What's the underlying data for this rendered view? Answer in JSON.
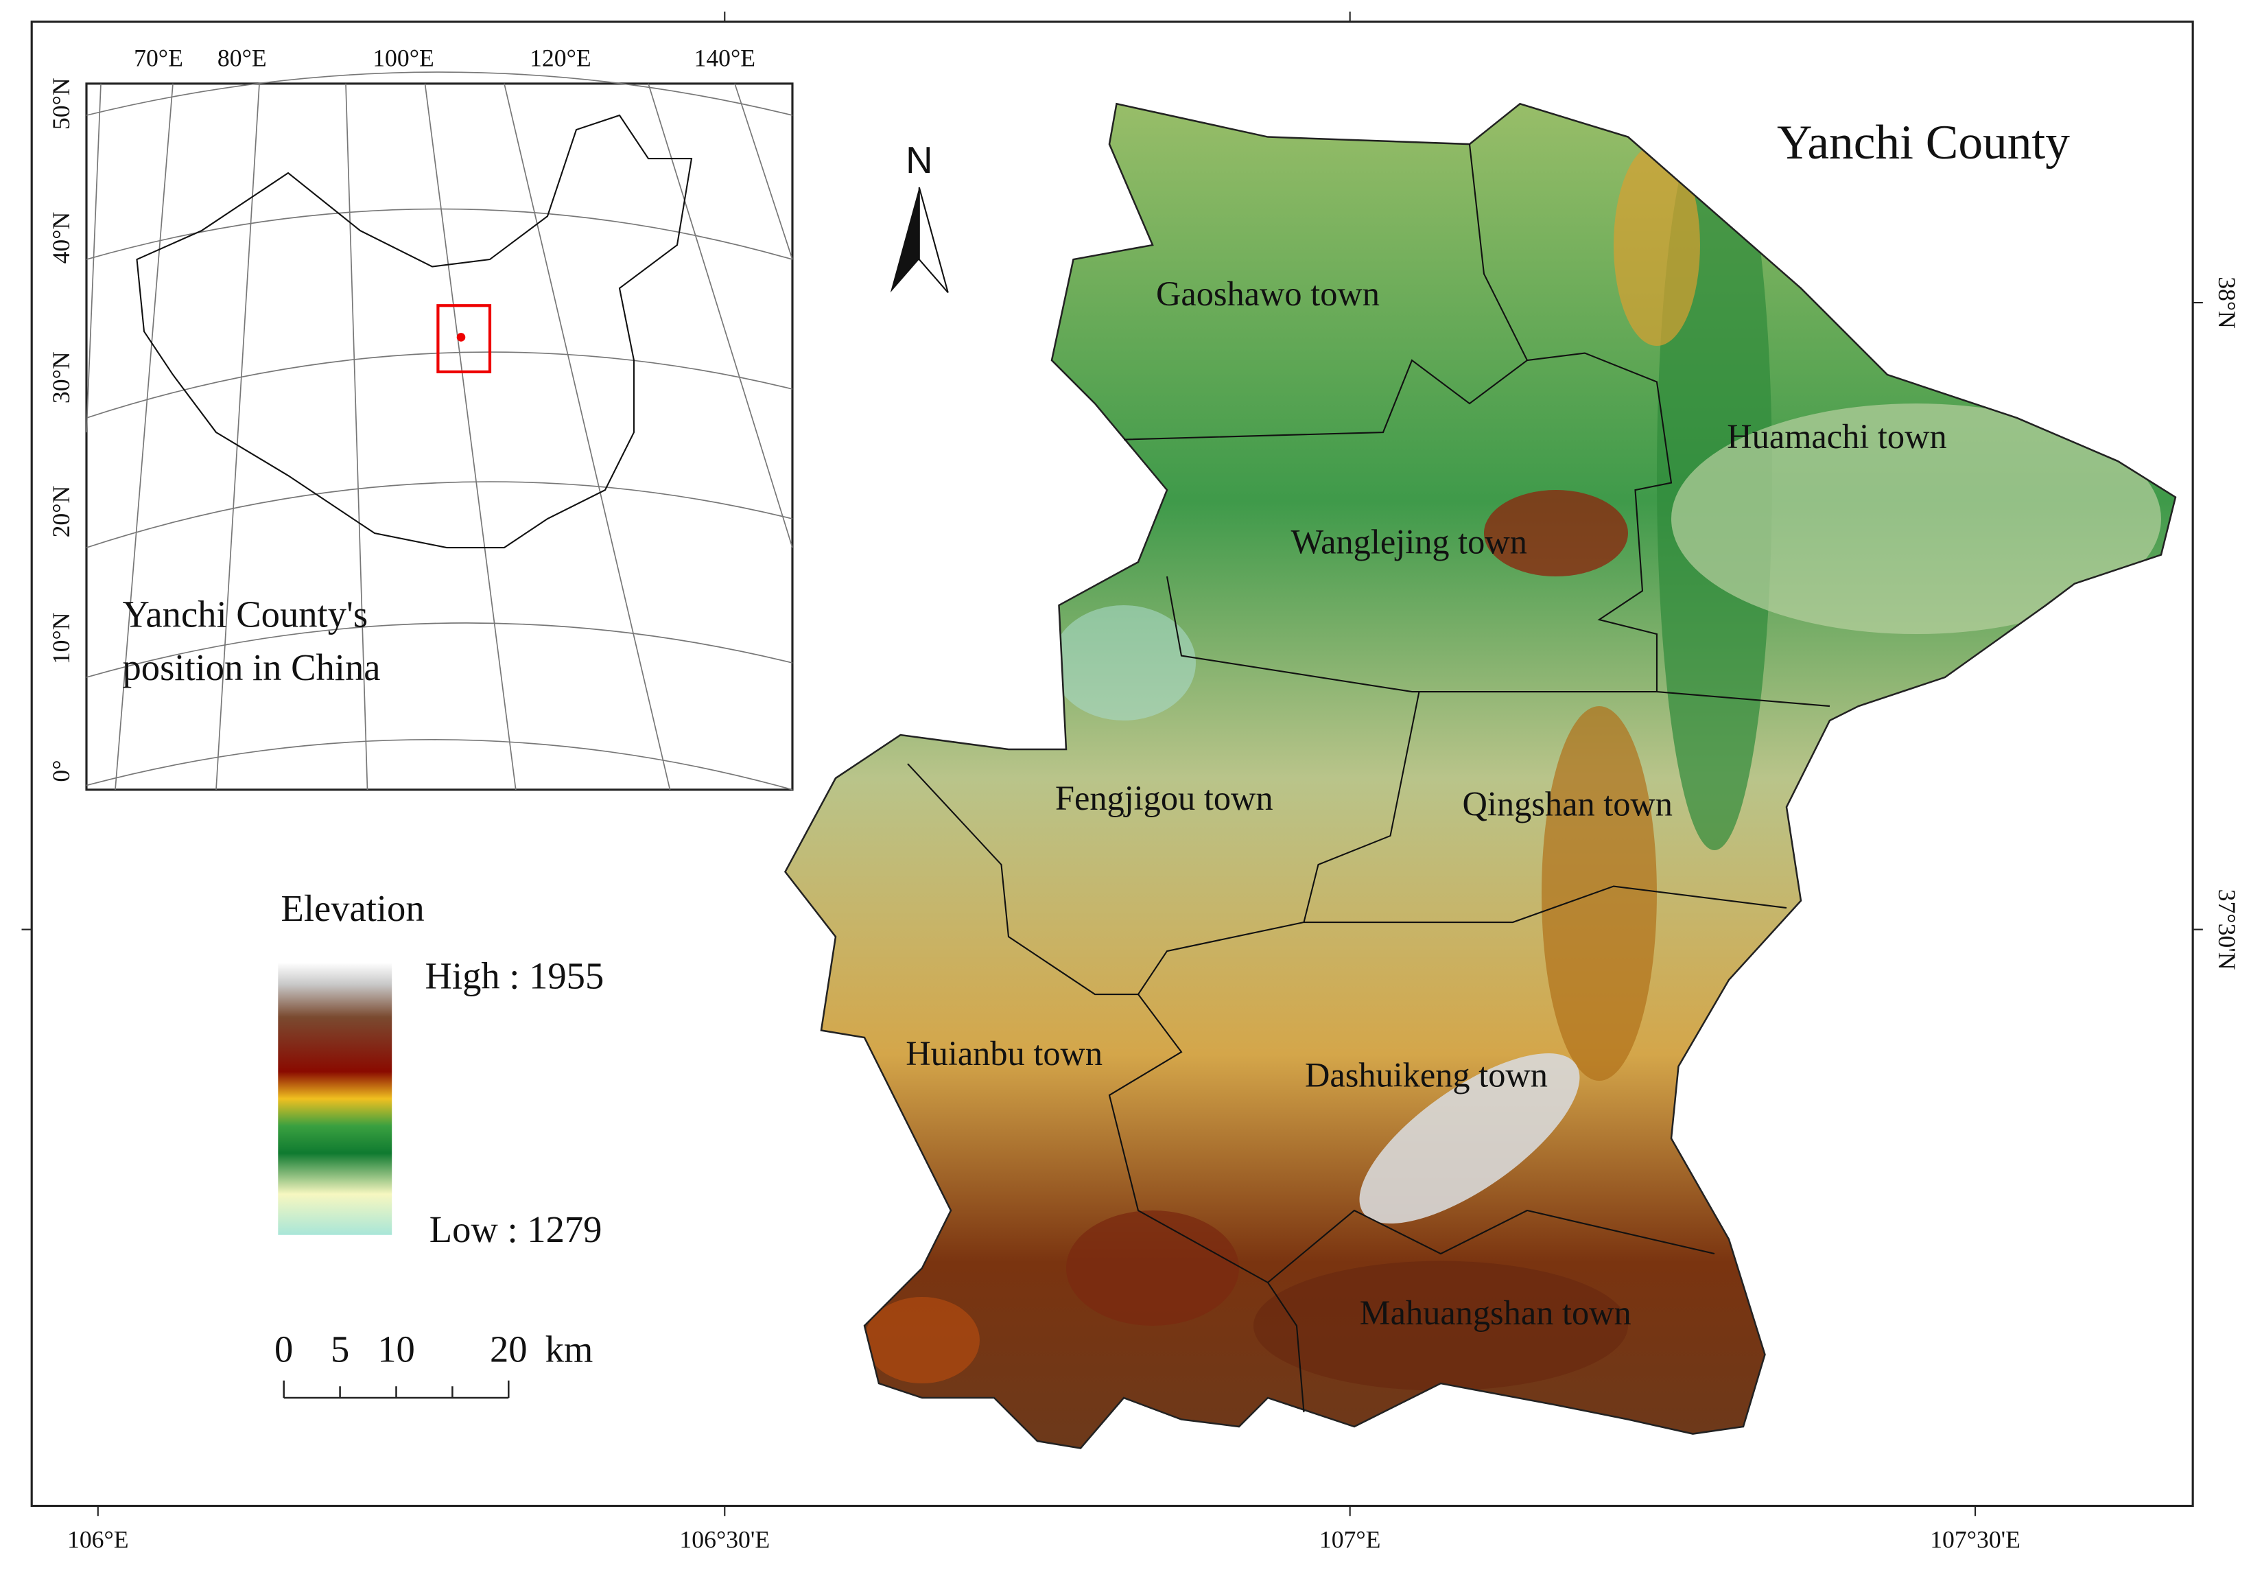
{
  "map": {
    "title": "Yanchi County",
    "north_label": "N",
    "towns": [
      "Gaoshawo town",
      "Huamachi town",
      "Wanglejing town",
      "Fengjigou town",
      "Qingshan town",
      "Huianbu town",
      "Dashuikeng town",
      "Mahuangshan town"
    ],
    "bottom_labels": [
      "106°E",
      "106°30'E",
      "107°E",
      "107°30'E"
    ],
    "right_labels": [
      "38°N",
      "37°30'N"
    ]
  },
  "inset": {
    "top_labels": [
      "70°E",
      "80°E",
      "100°E",
      "120°E",
      "140°E"
    ],
    "left_labels": [
      "50°N",
      "40°N",
      "30°N",
      "20°N",
      "10°N",
      "0°"
    ],
    "caption": [
      "Yanchi County's",
      "position in China"
    ]
  },
  "legend": {
    "title": "Elevation",
    "high": "High : 1955",
    "low": "Low : 1279"
  },
  "scale_bar": {
    "labels": [
      "0",
      "5",
      "10",
      "20"
    ],
    "unit": "km"
  }
}
